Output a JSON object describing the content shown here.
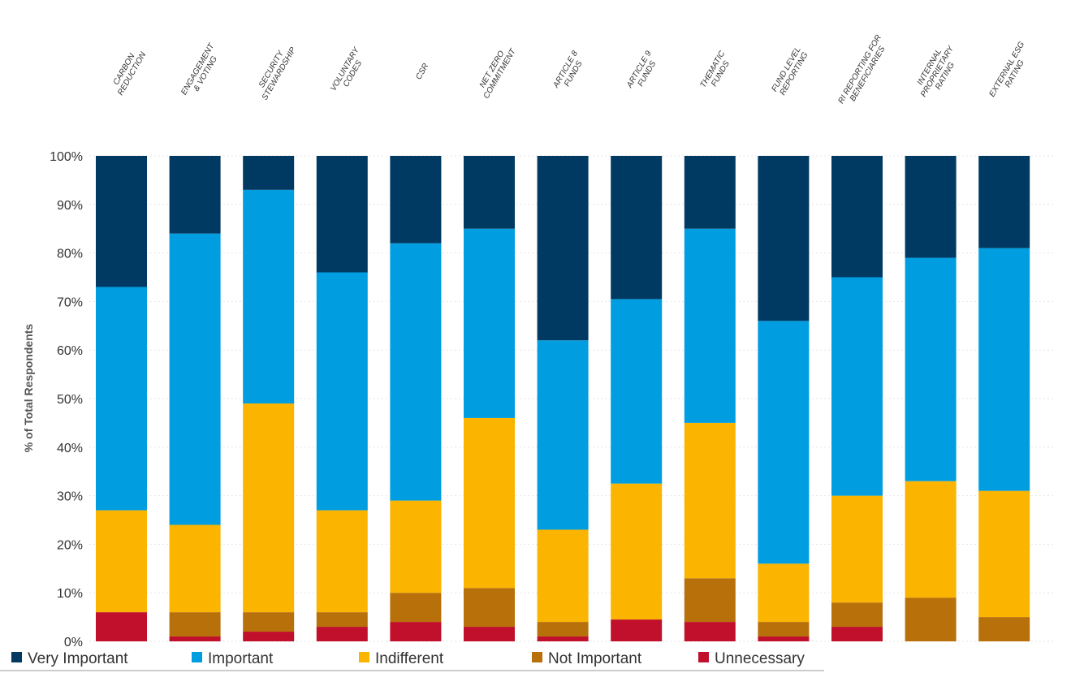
{
  "chart_data": {
    "type": "bar",
    "stacked": true,
    "categories": [
      [
        "CARBON",
        "REDUCTION"
      ],
      [
        "ENGAGEMENT",
        "& VOTING"
      ],
      [
        "SECURITY",
        "STEWARDSHIP"
      ],
      [
        "VOLUNTARY",
        "CODES"
      ],
      [
        "CSR"
      ],
      [
        "NET ZERO",
        "COMMITMENT"
      ],
      [
        "ARTICLE 8",
        "FUNDS"
      ],
      [
        "ARTICLE 9",
        "FUNDS"
      ],
      [
        "THEMATIC",
        "FUNDS"
      ],
      [
        "FUND LEVEL",
        "REPORTING"
      ],
      [
        "RI REPORTING FOR",
        "BENEFICIARIES"
      ],
      [
        "INTERNAL",
        "PROPRIETARY",
        "RATING"
      ],
      [
        "EXTERNAL ESG",
        "RATING"
      ]
    ],
    "series": [
      {
        "name": "Unnecessary",
        "color": "#c0102c",
        "values": [
          6,
          1,
          2,
          3,
          4,
          3,
          1,
          4.5,
          4,
          1,
          3,
          0,
          0
        ]
      },
      {
        "name": "Not Important",
        "color": "#b8700a",
        "values": [
          0,
          5,
          4,
          3,
          6,
          8,
          3,
          0,
          9,
          3,
          5,
          9,
          5
        ]
      },
      {
        "name": "Indifferent",
        "color": "#fbb400",
        "values": [
          21,
          18,
          43,
          21,
          19,
          35,
          19,
          28,
          32,
          12,
          22,
          24,
          26
        ]
      },
      {
        "name": "Important",
        "color": "#009ee0",
        "values": [
          46,
          60,
          44,
          49,
          53,
          39,
          39,
          38,
          40,
          50,
          45,
          46,
          50
        ]
      },
      {
        "name": "Very Important",
        "color": "#003a63",
        "values": [
          27,
          16,
          7,
          24,
          18,
          15,
          38,
          29.5,
          15,
          34,
          25,
          21,
          19
        ]
      }
    ],
    "legend_order": [
      "Very Important",
      "Important",
      "Indifferent",
      "Not Important",
      "Unnecessary"
    ],
    "ylabel": "% of Total Respondents",
    "ylim": [
      0,
      100
    ],
    "yticks": [
      0,
      10,
      20,
      30,
      40,
      50,
      60,
      70,
      80,
      90,
      100
    ],
    "ytick_labels": [
      "0%",
      "10%",
      "20%",
      "30%",
      "40%",
      "50%",
      "60%",
      "70%",
      "80%",
      "90%",
      "100%"
    ],
    "legend_position": "bottom",
    "grid": true
  }
}
